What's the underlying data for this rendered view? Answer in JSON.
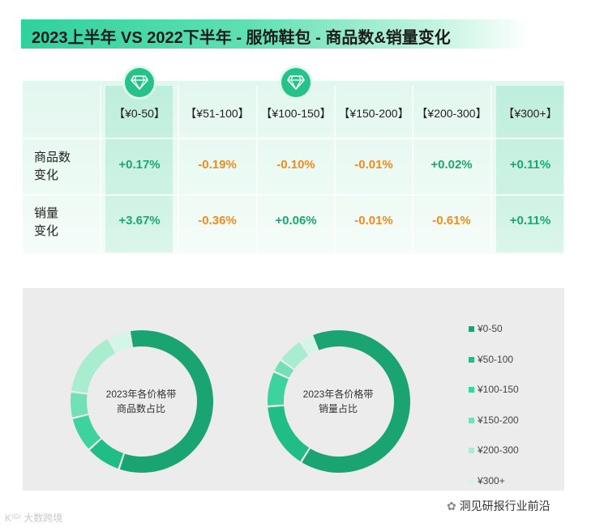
{
  "title": "2023上半年 VS 2022下半年 - 服饰鞋包 - 商品数&销量变化",
  "table": {
    "columns": [
      "【¥0-50】",
      "【¥51-100】",
      "【¥100-150】",
      "【¥150-200】",
      "【¥200-300】",
      "【¥300+】"
    ],
    "highlighted_columns": [
      0,
      5
    ],
    "diamond_columns": [
      0,
      2
    ],
    "rows": [
      {
        "label": "商品数\n变化",
        "values": [
          "+0.17%",
          "-0.19%",
          "-0.10%",
          "-0.01%",
          "+0.02%",
          "+0.11%"
        ]
      },
      {
        "label": "销量\n变化",
        "values": [
          "+3.67%",
          "-0.36%",
          "+0.06%",
          "-0.01%",
          "-0.61%",
          "+0.11%"
        ]
      }
    ]
  },
  "colors": {
    "positive": "#19a874",
    "negative": "#f08c1c",
    "segments": [
      "#1aa472",
      "#21bd86",
      "#3ed39e",
      "#74e0b6",
      "#a9edd1",
      "#d3f6e8"
    ]
  },
  "chart_data": [
    {
      "type": "pie",
      "donut": true,
      "title": "2023年各价格带\n商品数占比",
      "categories": [
        "¥0-50",
        "¥50-100",
        "¥100-150",
        "¥150-200",
        "¥200-300",
        "¥300+"
      ],
      "values": [
        58,
        8,
        8,
        6,
        15,
        5
      ]
    },
    {
      "type": "pie",
      "donut": true,
      "title": "2023年各价格带\n销量占比",
      "categories": [
        "¥0-50",
        "¥50-100",
        "¥100-150",
        "¥150-200",
        "¥200-300",
        "¥300+"
      ],
      "values": [
        65,
        15,
        8,
        3,
        6,
        3
      ]
    }
  ],
  "legend": [
    "¥0-50",
    "¥50-100",
    "¥100-150",
    "¥150-200",
    "¥200-300",
    "¥300+"
  ],
  "watermarks": {
    "left": "大数跨境",
    "right": "洞见研报行业前沿"
  }
}
